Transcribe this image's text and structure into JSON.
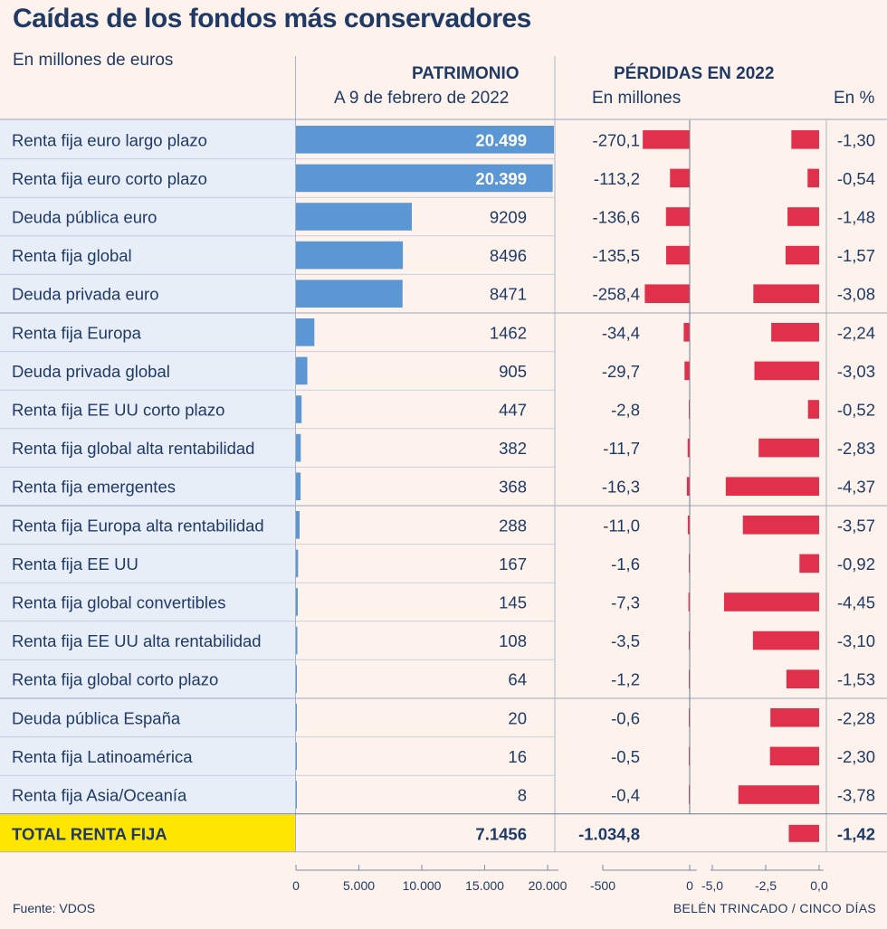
{
  "title": "Caídas de los fondos más conservadores",
  "subtitle": "En millones de euros",
  "headers": {
    "patrimonio": "PATRIMONIO",
    "patrimonio_sub": "A 9 de febrero de 2022",
    "perdidas": "PÉRDIDAS EN 2022",
    "perdidas_mill": "En millones",
    "perdidas_pct": "En %"
  },
  "chart_data": {
    "type": "table",
    "rows": [
      {
        "name": "Renta fija euro largo plazo",
        "patrimonio": 20499,
        "patrimonio_label": "20.499",
        "perdida": -270.1,
        "perdida_label": "-270,1",
        "pct": -1.3,
        "pct_label": "-1,30"
      },
      {
        "name": "Renta fija euro corto plazo",
        "patrimonio": 20399,
        "patrimonio_label": "20.399",
        "perdida": -113.2,
        "perdida_label": "-113,2",
        "pct": -0.54,
        "pct_label": "-0,54"
      },
      {
        "name": "Deuda pública euro",
        "patrimonio": 9209,
        "patrimonio_label": "9209",
        "perdida": -136.6,
        "perdida_label": "-136,6",
        "pct": -1.48,
        "pct_label": "-1,48"
      },
      {
        "name": "Renta fija global",
        "patrimonio": 8496,
        "patrimonio_label": "8496",
        "perdida": -135.5,
        "perdida_label": "-135,5",
        "pct": -1.57,
        "pct_label": "-1,57"
      },
      {
        "name": "Deuda privada euro",
        "patrimonio": 8471,
        "patrimonio_label": "8471",
        "perdida": -258.4,
        "perdida_label": "-258,4",
        "pct": -3.08,
        "pct_label": "-3,08"
      },
      {
        "name": "Renta fija Europa",
        "patrimonio": 1462,
        "patrimonio_label": "1462",
        "perdida": -34.4,
        "perdida_label": "-34,4",
        "pct": -2.24,
        "pct_label": "-2,24"
      },
      {
        "name": "Deuda privada global",
        "patrimonio": 905,
        "patrimonio_label": "905",
        "perdida": -29.7,
        "perdida_label": "-29,7",
        "pct": -3.03,
        "pct_label": "-3,03"
      },
      {
        "name": "Renta fija EE UU corto plazo",
        "patrimonio": 447,
        "patrimonio_label": "447",
        "perdida": -2.8,
        "perdida_label": "-2,8",
        "pct": -0.52,
        "pct_label": "-0,52"
      },
      {
        "name": "Renta fija global alta rentabilidad",
        "patrimonio": 382,
        "patrimonio_label": "382",
        "perdida": -11.7,
        "perdida_label": "-11,7",
        "pct": -2.83,
        "pct_label": "-2,83"
      },
      {
        "name": "Renta fija emergentes",
        "patrimonio": 368,
        "patrimonio_label": "368",
        "perdida": -16.3,
        "perdida_label": "-16,3",
        "pct": -4.37,
        "pct_label": "-4,37"
      },
      {
        "name": "Renta fija Europa alta rentabilidad",
        "patrimonio": 288,
        "patrimonio_label": "288",
        "perdida": -11.0,
        "perdida_label": "-11,0",
        "pct": -3.57,
        "pct_label": "-3,57"
      },
      {
        "name": "Renta fija EE UU",
        "patrimonio": 167,
        "patrimonio_label": "167",
        "perdida": -1.6,
        "perdida_label": "-1,6",
        "pct": -0.92,
        "pct_label": "-0,92"
      },
      {
        "name": "Renta fija global convertibles",
        "patrimonio": 145,
        "patrimonio_label": "145",
        "perdida": -7.3,
        "perdida_label": "-7,3",
        "pct": -4.45,
        "pct_label": "-4,45"
      },
      {
        "name": "Renta fija EE UU alta rentabilidad",
        "patrimonio": 108,
        "patrimonio_label": "108",
        "perdida": -3.5,
        "perdida_label": "-3,5",
        "pct": -3.1,
        "pct_label": "-3,10"
      },
      {
        "name": "Renta fija global corto plazo",
        "patrimonio": 64,
        "patrimonio_label": "64",
        "perdida": -1.2,
        "perdida_label": "-1,2",
        "pct": -1.53,
        "pct_label": "-1,53"
      },
      {
        "name": "Deuda pública España",
        "patrimonio": 20,
        "patrimonio_label": "20",
        "perdida": -0.6,
        "perdida_label": "-0,6",
        "pct": -2.28,
        "pct_label": "-2,28"
      },
      {
        "name": "Renta fija Latinoamérica",
        "patrimonio": 16,
        "patrimonio_label": "16",
        "perdida": -0.5,
        "perdida_label": "-0,5",
        "pct": -2.3,
        "pct_label": "-2,30"
      },
      {
        "name": "Renta fija Asia/Oceanía",
        "patrimonio": 8,
        "patrimonio_label": "8",
        "perdida": -0.4,
        "perdida_label": "-0,4",
        "pct": -3.78,
        "pct_label": "-3,78"
      }
    ],
    "total": {
      "name": "TOTAL RENTA FIJA",
      "patrimonio_label": "7.1456",
      "perdida_label": "-1.034,8",
      "pct": -1.42,
      "pct_label": "-1,42"
    },
    "patrimonio_axis": {
      "range": [
        0,
        20499
      ],
      "ticks": [
        0,
        5000,
        10000,
        15000,
        20000
      ],
      "tick_labels": [
        "0",
        "5.000",
        "10.000",
        "15.000",
        "20.000"
      ]
    },
    "perdida_axis": {
      "range": [
        -500,
        0
      ],
      "ticks": [
        -500,
        0
      ],
      "tick_labels": [
        "-500",
        "0"
      ]
    },
    "pct_axis": {
      "range": [
        -5,
        0
      ],
      "ticks": [
        -5,
        -2.5,
        0
      ],
      "tick_labels": [
        "-5,0",
        "-2,5",
        "0,0"
      ]
    }
  },
  "colors": {
    "title": "#1f3a64",
    "bar_blue": "#5b97d5",
    "bar_red": "#e1304b",
    "label_bg": "#e8eef8",
    "total_bg": "#ffe600",
    "background": "#fdf3ec",
    "line": "#aab4c8"
  },
  "source": "Fuente: VDOS",
  "credit": "BELÉN TRINCADO / CINCO DÍAS"
}
